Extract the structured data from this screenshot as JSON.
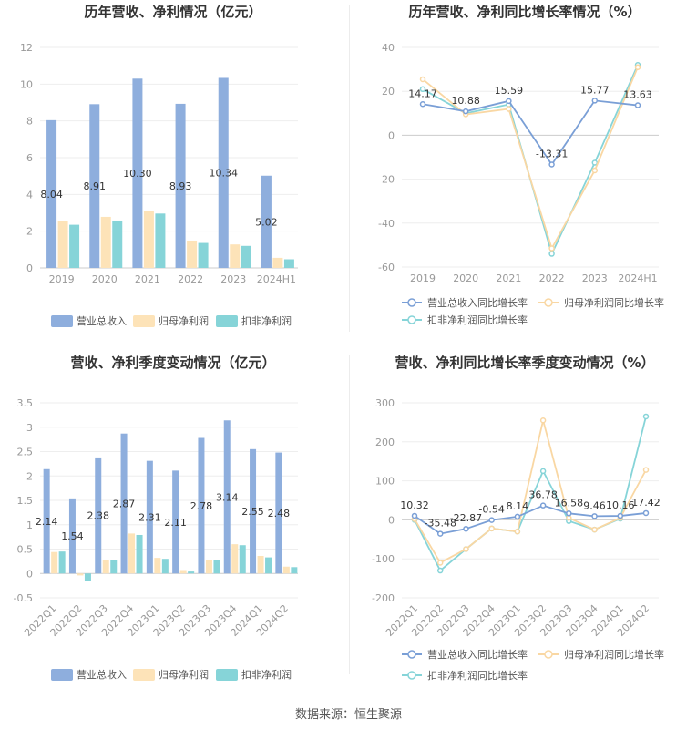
{
  "colors": {
    "revenue": "#8eaedd",
    "net": "#fde3b8",
    "deducted": "#86d4d8",
    "rev_line": "#7a9fd6",
    "net_line": "#f9d7a3",
    "ded_line": "#86d4d8",
    "axis": "#999999",
    "grid": "#eeeeee",
    "title": "#333333"
  },
  "footer": {
    "text": "数据来源：恒生聚源"
  },
  "chart_data": [
    {
      "type": "bar",
      "title": "历年营收、净利情况（亿元）",
      "categories": [
        "2019",
        "2020",
        "2021",
        "2022",
        "2023",
        "2024H1"
      ],
      "ylim": [
        0,
        12
      ],
      "yticks": [
        0,
        2,
        4,
        6,
        8,
        10,
        12
      ],
      "grid": true,
      "legend_position": "bottom",
      "series": [
        {
          "name": "营业总收入",
          "values": [
            8.04,
            8.91,
            10.3,
            8.93,
            10.34,
            5.02
          ],
          "labels": [
            "8.04",
            "8.91",
            "10.30",
            "8.93",
            "10.34",
            "5.02"
          ]
        },
        {
          "name": "归母净利润",
          "values": [
            2.53,
            2.78,
            3.11,
            1.49,
            1.28,
            0.55
          ]
        },
        {
          "name": "扣非净利润",
          "values": [
            2.35,
            2.58,
            2.96,
            1.36,
            1.2,
            0.47
          ]
        }
      ]
    },
    {
      "type": "line",
      "title": "历年营收、净利同比增长率情况（%）",
      "categories": [
        "2019",
        "2020",
        "2021",
        "2022",
        "2023",
        "2024H1"
      ],
      "ylim": [
        -60,
        40
      ],
      "yticks": [
        -60,
        -40,
        -20,
        0,
        20,
        40
      ],
      "grid": true,
      "legend_position": "bottom",
      "series": [
        {
          "name": "营业总收入同比增长率",
          "values": [
            14.17,
            10.88,
            15.59,
            -13.31,
            15.77,
            13.63
          ],
          "labels": [
            "14.17",
            "10.88",
            "15.59",
            "-13.31",
            "15.77",
            "13.63"
          ]
        },
        {
          "name": "归母净利润同比增长率",
          "values": [
            25.5,
            9.5,
            12.0,
            -51.5,
            -16.0,
            31.0
          ]
        },
        {
          "name": "扣非净利润同比增长率",
          "values": [
            21.0,
            10.0,
            14.0,
            -54.0,
            -12.5,
            32.0
          ]
        }
      ]
    },
    {
      "type": "bar",
      "title": "营收、净利季度变动情况（亿元）",
      "categories": [
        "2022Q1",
        "2022Q2",
        "2022Q3",
        "2022Q4",
        "2023Q1",
        "2023Q2",
        "2023Q3",
        "2023Q4",
        "2024Q1",
        "2024Q2"
      ],
      "ylim": [
        -0.5,
        3.5
      ],
      "yticks": [
        -0.5,
        0,
        0.5,
        1,
        1.5,
        2,
        2.5,
        3,
        3.5
      ],
      "grid": true,
      "legend_position": "bottom",
      "series": [
        {
          "name": "营业总收入",
          "values": [
            2.14,
            1.54,
            2.38,
            2.87,
            2.31,
            2.11,
            2.78,
            3.14,
            2.55,
            2.48
          ],
          "labels": [
            "2.14",
            "1.54",
            "2.38",
            "2.87",
            "2.31",
            "2.11",
            "2.78",
            "3.14",
            "2.55",
            "2.48"
          ]
        },
        {
          "name": "归母净利润",
          "values": [
            0.44,
            -0.04,
            0.27,
            0.82,
            0.32,
            0.07,
            0.28,
            0.6,
            0.36,
            0.14
          ]
        },
        {
          "name": "扣非净利润",
          "values": [
            0.45,
            -0.15,
            0.27,
            0.79,
            0.3,
            0.04,
            0.27,
            0.58,
            0.33,
            0.13
          ]
        }
      ]
    },
    {
      "type": "line",
      "title": "营收、净利同比增长率季度变动情况（%）",
      "categories": [
        "2022Q1",
        "2022Q2",
        "2022Q3",
        "2022Q4",
        "2023Q1",
        "2023Q2",
        "2023Q3",
        "2023Q4",
        "2024Q1",
        "2024Q2"
      ],
      "ylim": [
        -200,
        300
      ],
      "yticks": [
        -200,
        -100,
        0,
        100,
        200,
        300
      ],
      "grid": true,
      "legend_position": "bottom",
      "series": [
        {
          "name": "营业总收入同比增长率",
          "values": [
            10.32,
            -35.48,
            -22.87,
            -0.54,
            8.14,
            36.78,
            16.58,
            9.46,
            10.16,
            17.42
          ],
          "labels": [
            "10.32",
            "-35.48",
            "-22.87",
            "-0.54",
            "8.14",
            "36.78",
            "16.58",
            "9.46",
            "10.16",
            "17.42"
          ]
        },
        {
          "name": "归母净利润同比增长率",
          "values": [
            2,
            -110,
            -75,
            -22,
            -30,
            255,
            5,
            -25,
            5,
            128
          ]
        },
        {
          "name": "扣非净利润同比增长率",
          "values": [
            0,
            -130,
            -75,
            -22,
            -30,
            125,
            -3,
            -25,
            3,
            265
          ]
        }
      ]
    }
  ]
}
